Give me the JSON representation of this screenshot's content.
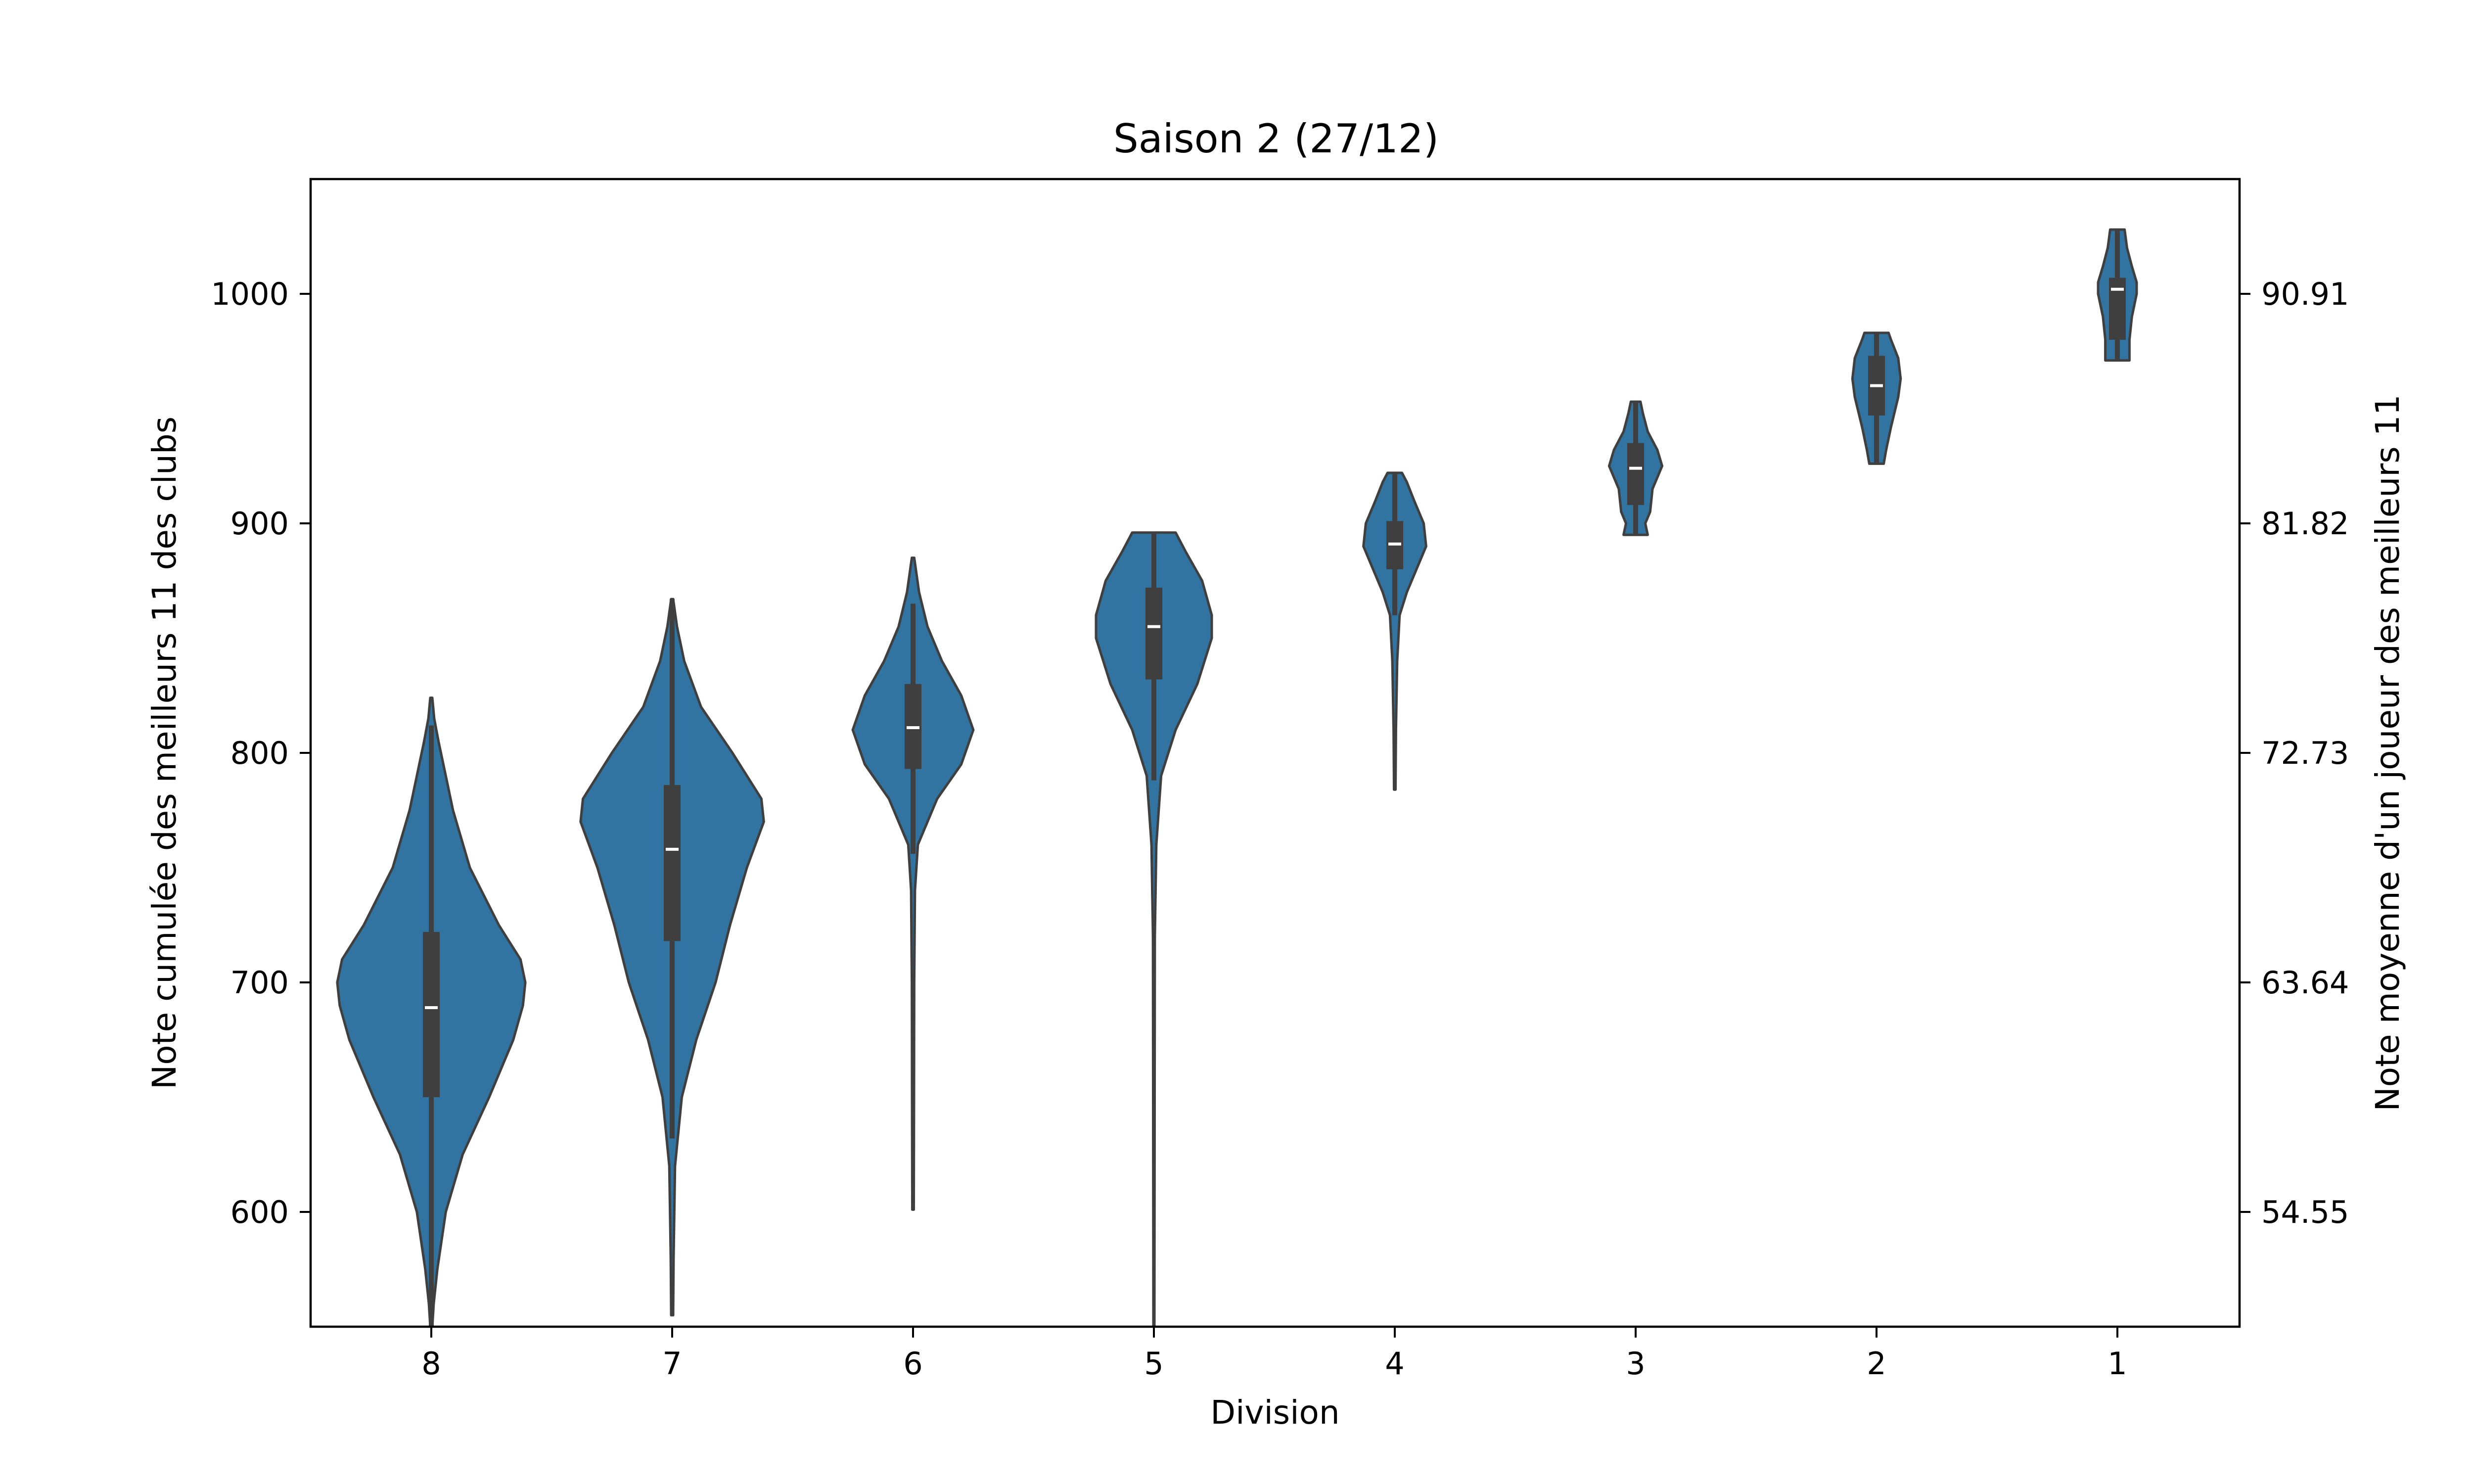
{
  "chart_data": {
    "type": "violin",
    "title": "Saison 2 (27/12)",
    "xlabel": "Division",
    "ylabel": "Note cumulée des meilleurs 11 des clubs",
    "ylabel_right": "Note moyenne d'un joueur des meilleurs 11",
    "ylim": [
      550,
      1050
    ],
    "yticks": [
      600,
      700,
      800,
      900,
      1000
    ],
    "ytick_labels": [
      "600",
      "700",
      "800",
      "900",
      "1000"
    ],
    "yticks_right": [
      600,
      700,
      800,
      900,
      1000
    ],
    "ytick_labels_right": [
      "54.55",
      "63.64",
      "72.73",
      "81.82",
      "90.91"
    ],
    "categories": [
      "8",
      "7",
      "6",
      "5",
      "4",
      "3",
      "2",
      "1"
    ],
    "grid": false,
    "colors": {
      "fill": "#3274a1",
      "edge": "#3f3f3f",
      "box": "#3f3f3f",
      "median": "#ffffff"
    },
    "violins": [
      {
        "category": "8",
        "min": 550,
        "q1": 650,
        "median": 689,
        "q3": 722,
        "max": 812,
        "whisker_low": 550,
        "whisker_high": 812,
        "profile": [
          [
            550,
            0.004
          ],
          [
            560,
            0.01
          ],
          [
            575,
            0.025
          ],
          [
            600,
            0.06
          ],
          [
            625,
            0.13
          ],
          [
            650,
            0.24
          ],
          [
            675,
            0.34
          ],
          [
            690,
            0.38
          ],
          [
            700,
            0.39
          ],
          [
            710,
            0.37
          ],
          [
            725,
            0.28
          ],
          [
            750,
            0.16
          ],
          [
            775,
            0.09
          ],
          [
            790,
            0.06
          ],
          [
            805,
            0.03
          ],
          [
            815,
            0.012
          ],
          [
            824,
            0.004
          ]
        ]
      },
      {
        "category": "7",
        "min": 555,
        "q1": 718,
        "median": 758,
        "q3": 786,
        "max": 867,
        "whisker_low": 632,
        "whisker_high": 867,
        "profile": [
          [
            555,
            0.004
          ],
          [
            580,
            0.006
          ],
          [
            620,
            0.012
          ],
          [
            650,
            0.04
          ],
          [
            675,
            0.1
          ],
          [
            700,
            0.18
          ],
          [
            725,
            0.24
          ],
          [
            750,
            0.31
          ],
          [
            770,
            0.38
          ],
          [
            780,
            0.37
          ],
          [
            800,
            0.25
          ],
          [
            820,
            0.12
          ],
          [
            840,
            0.05
          ],
          [
            855,
            0.02
          ],
          [
            867,
            0.004
          ]
        ]
      },
      {
        "category": "6",
        "min": 601,
        "q1": 793,
        "median": 811,
        "q3": 830,
        "max": 885,
        "whisker_low": 756,
        "whisker_high": 865,
        "profile": [
          [
            601,
            0.003
          ],
          [
            650,
            0.004
          ],
          [
            700,
            0.005
          ],
          [
            740,
            0.008
          ],
          [
            760,
            0.02
          ],
          [
            780,
            0.1
          ],
          [
            795,
            0.2
          ],
          [
            810,
            0.25
          ],
          [
            825,
            0.2
          ],
          [
            840,
            0.12
          ],
          [
            855,
            0.06
          ],
          [
            870,
            0.025
          ],
          [
            885,
            0.005
          ]
        ]
      },
      {
        "category": "5",
        "min": 550,
        "q1": 832,
        "median": 855,
        "q3": 872,
        "max": 896,
        "whisker_low": 788,
        "whisker_high": 896,
        "profile": [
          [
            550,
            0.002
          ],
          [
            650,
            0.003
          ],
          [
            720,
            0.004
          ],
          [
            760,
            0.01
          ],
          [
            790,
            0.03
          ],
          [
            810,
            0.09
          ],
          [
            830,
            0.18
          ],
          [
            850,
            0.24
          ],
          [
            860,
            0.24
          ],
          [
            875,
            0.2
          ],
          [
            888,
            0.13
          ],
          [
            896,
            0.09
          ]
        ]
      },
      {
        "category": "4",
        "min": 784,
        "q1": 880,
        "median": 891,
        "q3": 901,
        "max": 922,
        "whisker_low": 860,
        "whisker_high": 922,
        "profile": [
          [
            784,
            0.003
          ],
          [
            810,
            0.005
          ],
          [
            840,
            0.01
          ],
          [
            860,
            0.02
          ],
          [
            870,
            0.05
          ],
          [
            880,
            0.09
          ],
          [
            890,
            0.13
          ],
          [
            900,
            0.12
          ],
          [
            910,
            0.08
          ],
          [
            918,
            0.05
          ],
          [
            922,
            0.03
          ]
        ]
      },
      {
        "category": "3",
        "min": 895,
        "q1": 908,
        "median": 924,
        "q3": 935,
        "max": 953,
        "whisker_low": 895,
        "whisker_high": 953,
        "profile": [
          [
            895,
            0.05
          ],
          [
            900,
            0.04
          ],
          [
            905,
            0.06
          ],
          [
            915,
            0.07
          ],
          [
            925,
            0.11
          ],
          [
            932,
            0.09
          ],
          [
            940,
            0.05
          ],
          [
            948,
            0.03
          ],
          [
            953,
            0.02
          ]
        ]
      },
      {
        "category": "2",
        "min": 926,
        "q1": 947,
        "median": 960,
        "q3": 973,
        "max": 983,
        "whisker_low": 926,
        "whisker_high": 983,
        "profile": [
          [
            926,
            0.03
          ],
          [
            932,
            0.04
          ],
          [
            942,
            0.06
          ],
          [
            955,
            0.09
          ],
          [
            963,
            0.1
          ],
          [
            972,
            0.09
          ],
          [
            980,
            0.06
          ],
          [
            983,
            0.05
          ]
        ]
      },
      {
        "category": "1",
        "min": 971,
        "q1": 980,
        "median": 1002,
        "q3": 1007,
        "max": 1028,
        "whisker_low": 971,
        "whisker_high": 1028,
        "profile": [
          [
            971,
            0.05
          ],
          [
            980,
            0.05
          ],
          [
            990,
            0.06
          ],
          [
            1000,
            0.08
          ],
          [
            1005,
            0.08
          ],
          [
            1012,
            0.06
          ],
          [
            1020,
            0.04
          ],
          [
            1028,
            0.03
          ]
        ]
      }
    ]
  }
}
